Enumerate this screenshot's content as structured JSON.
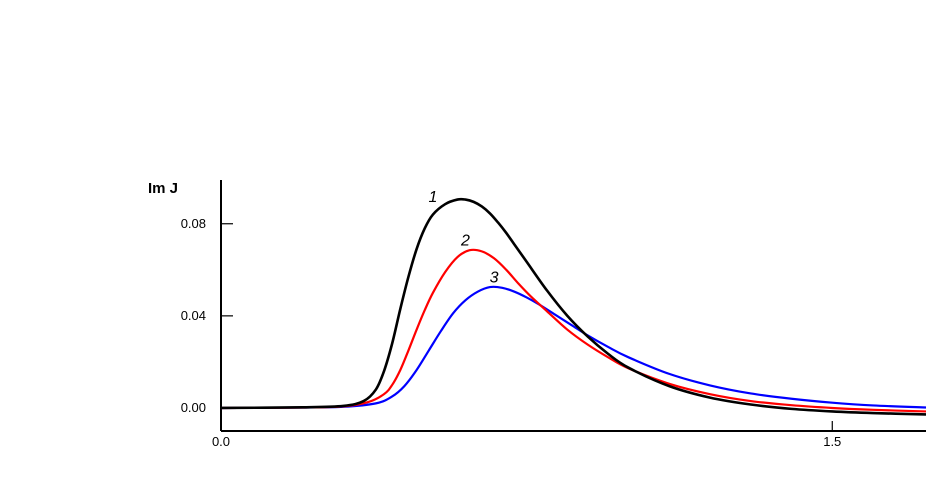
{
  "chart_data": {
    "type": "line",
    "title": "",
    "xlabel": "",
    "ylabel": "Im J",
    "xlim": [
      0.0,
      1.73
    ],
    "ylim": [
      -0.01,
      0.099
    ],
    "x_ticks": [
      {
        "value": 0.0,
        "label": "0.0"
      },
      {
        "value": 1.5,
        "label": "1.5"
      }
    ],
    "y_ticks": [
      {
        "value": 0.0,
        "label": "0.00"
      },
      {
        "value": 0.04,
        "label": "0.04"
      },
      {
        "value": 0.08,
        "label": "0.08"
      }
    ],
    "grid": false,
    "series": [
      {
        "name": "1",
        "color": "#000000",
        "x": [
          0.0,
          0.2,
          0.3,
          0.35,
          0.38,
          0.4,
          0.42,
          0.44,
          0.46,
          0.48,
          0.5,
          0.52,
          0.55,
          0.58,
          0.6,
          0.62,
          0.64,
          0.66,
          0.68,
          0.7,
          0.72,
          0.75,
          0.8,
          0.85,
          0.9,
          0.95,
          1.0,
          1.1,
          1.2,
          1.3,
          1.4,
          1.5,
          1.6,
          1.73
        ],
        "values": [
          0.0,
          0.0003,
          0.0009,
          0.003,
          0.008,
          0.016,
          0.028,
          0.043,
          0.057,
          0.069,
          0.078,
          0.084,
          0.0885,
          0.0905,
          0.0905,
          0.0895,
          0.0875,
          0.0845,
          0.0805,
          0.076,
          0.071,
          0.0635,
          0.051,
          0.04,
          0.031,
          0.0235,
          0.0175,
          0.0095,
          0.0045,
          0.0015,
          -0.0004,
          -0.0015,
          -0.0022,
          -0.0028
        ]
      },
      {
        "name": "2",
        "color": "#ff0000",
        "x": [
          0.0,
          0.2,
          0.3,
          0.36,
          0.4,
          0.42,
          0.44,
          0.46,
          0.48,
          0.5,
          0.52,
          0.55,
          0.58,
          0.61,
          0.64,
          0.67,
          0.7,
          0.73,
          0.76,
          0.8,
          0.85,
          0.9,
          0.95,
          1.0,
          1.1,
          1.2,
          1.3,
          1.4,
          1.5,
          1.6,
          1.73
        ],
        "values": [
          0.0,
          0.0002,
          0.0007,
          0.0025,
          0.006,
          0.01,
          0.0165,
          0.025,
          0.034,
          0.0425,
          0.05,
          0.059,
          0.0655,
          0.0685,
          0.068,
          0.065,
          0.06,
          0.054,
          0.0485,
          0.042,
          0.034,
          0.0275,
          0.022,
          0.0172,
          0.0105,
          0.006,
          0.003,
          0.0012,
          0.0,
          -0.0008,
          -0.0015
        ]
      },
      {
        "name": "3",
        "color": "#0000ff",
        "x": [
          0.0,
          0.2,
          0.3,
          0.38,
          0.42,
          0.45,
          0.48,
          0.51,
          0.54,
          0.57,
          0.6,
          0.63,
          0.66,
          0.69,
          0.72,
          0.75,
          0.78,
          0.82,
          0.86,
          0.9,
          0.95,
          1.0,
          1.1,
          1.2,
          1.3,
          1.4,
          1.5,
          1.6,
          1.73
        ],
        "values": [
          0.0,
          0.0002,
          0.0005,
          0.002,
          0.005,
          0.0095,
          0.0165,
          0.025,
          0.0335,
          0.0412,
          0.0468,
          0.0505,
          0.0525,
          0.0522,
          0.0505,
          0.048,
          0.045,
          0.0405,
          0.036,
          0.0315,
          0.0265,
          0.022,
          0.0148,
          0.0098,
          0.0063,
          0.004,
          0.0023,
          0.0011,
          0.0002
        ]
      }
    ],
    "annotations": [
      {
        "text": "1",
        "series": "1",
        "x": 0.52,
        "y": 0.0895
      },
      {
        "text": "2",
        "series": "2",
        "x": 0.6,
        "y": 0.0705
      },
      {
        "text": "3",
        "series": "3",
        "x": 0.67,
        "y": 0.0545
      }
    ]
  }
}
